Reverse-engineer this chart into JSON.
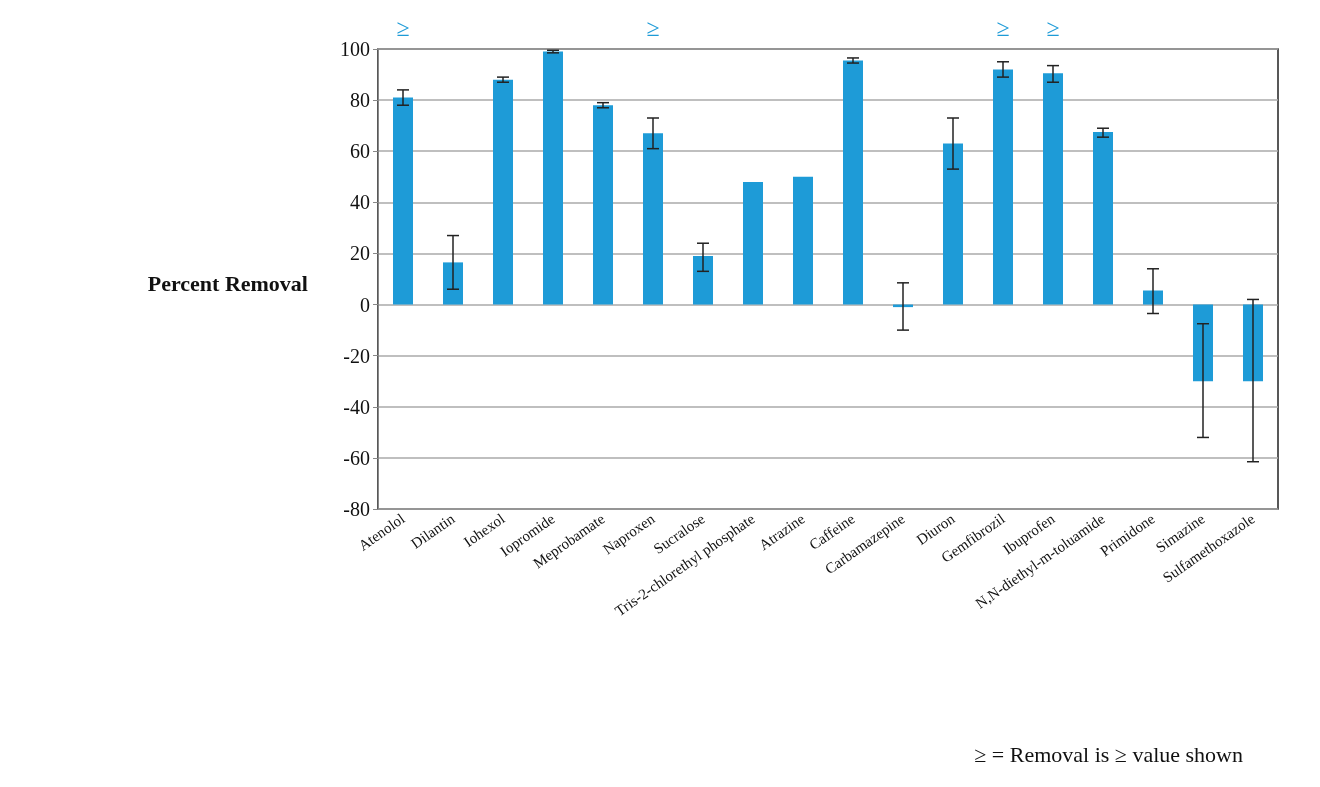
{
  "chart_data": {
    "type": "bar",
    "ylabel": "Percent Removal",
    "categories": [
      "Atenolol",
      "Dilantin",
      "Iohexol",
      "Iopromide",
      "Meprobamate",
      "Naproxen",
      "Sucralose",
      "Tris-2-chlorethyl phosphate",
      "Atrazine",
      "Caffeine",
      "Carbamazepine",
      "Diuron",
      "Gemfibrozil",
      "Ibuprofen",
      "N,N-diethyl-m-toluamide",
      "Primidone",
      "Simazine",
      "Sulfamethoxazole"
    ],
    "values": [
      81,
      16.5,
      88,
      99,
      78,
      67,
      19,
      48,
      50,
      95.5,
      -1,
      63,
      92,
      90.5,
      67.5,
      5.5,
      -30,
      -30
    ],
    "errors": [
      [
        78,
        84
      ],
      [
        6,
        27
      ],
      [
        87,
        89
      ],
      [
        98.5,
        99.5
      ],
      [
        77,
        79
      ],
      [
        61,
        73
      ],
      [
        13,
        24
      ],
      null,
      null,
      [
        94.5,
        96.5
      ],
      [
        -10,
        8.5
      ],
      [
        53,
        73
      ],
      [
        89,
        95
      ],
      [
        87,
        93.5
      ],
      [
        65.5,
        69
      ],
      [
        -3.5,
        14
      ],
      [
        -52,
        -7.5
      ],
      [
        -61.5,
        2
      ]
    ],
    "color": "#1e9bd7",
    "ylim": [
      -80,
      100
    ],
    "yticks": [
      -80,
      -60,
      -40,
      -20,
      0,
      20,
      40,
      60,
      80,
      100
    ],
    "grid": "y",
    "annotations": [
      "≥",
      "≥",
      "≥",
      "≥",
      "≥ = Removal is ≥ value shown"
    ]
  }
}
